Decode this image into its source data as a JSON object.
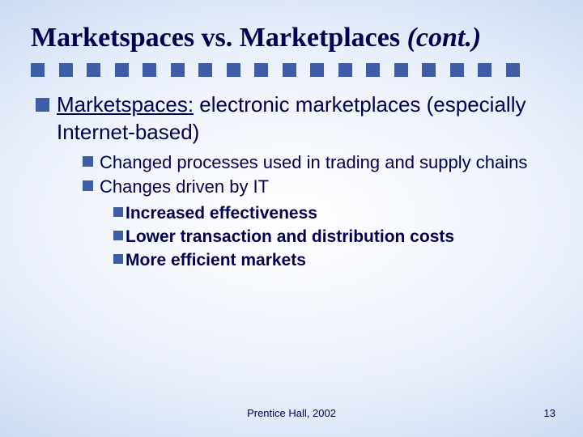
{
  "title": {
    "main": "Marketspaces vs. Marketplaces ",
    "italic": "(cont.)",
    "fontsize": 34,
    "color": "#000050"
  },
  "divider": {
    "count": 18,
    "square_size": 17,
    "gap": 17.5,
    "color": "#3d5da6"
  },
  "bullets": {
    "lvl1": {
      "underline": "Marketspaces:",
      "rest": " electronic marketplaces (especially Internet-based)",
      "fontsize": 26
    },
    "lvl2": [
      {
        "text": "Changed processes used in trading and supply chains"
      },
      {
        "text": "Changes driven by IT"
      }
    ],
    "lvl2_fontsize": 22,
    "lvl3": [
      {
        "text": "Increased effectiveness"
      },
      {
        "text": "Lower transaction and distribution costs"
      },
      {
        "text": "More efficient markets"
      }
    ],
    "lvl3_fontsize": 21
  },
  "footer": {
    "text": "Prentice Hall, 2002",
    "fontsize": 13
  },
  "pagenum": {
    "text": "13",
    "fontsize": 13
  },
  "colors": {
    "text": "#000050",
    "bullet": "#3d5da6",
    "bg_center": "#ffffff",
    "bg_edge": "#8fb0e0"
  }
}
